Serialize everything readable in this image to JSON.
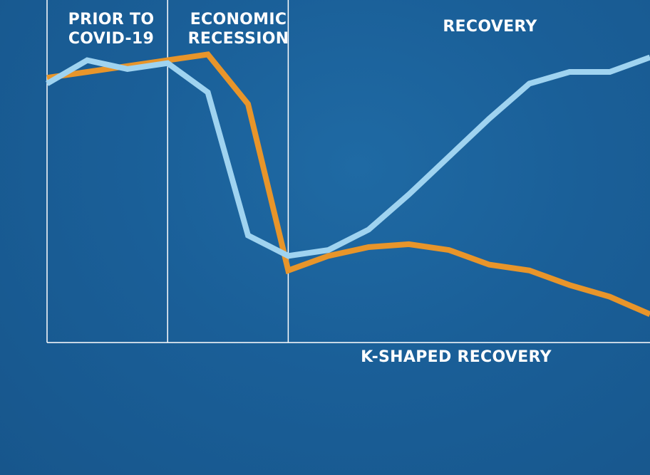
{
  "chart_data": {
    "type": "line",
    "title": "",
    "caption": "K-SHAPED RECOVERY",
    "xlabel": "",
    "ylabel": "",
    "grid": false,
    "legend": "none",
    "x": [
      0,
      1,
      2,
      3,
      4,
      5,
      6,
      7,
      8,
      9,
      10,
      11,
      12,
      13,
      14,
      15
    ],
    "ylim": [
      0,
      100
    ],
    "phases": [
      {
        "label": "PRIOR TO\nCOVID-19",
        "x_start": 0,
        "x_end": 3
      },
      {
        "label": "ECONOMIC\nRECESSION",
        "x_start": 3,
        "x_end": 6
      },
      {
        "label": "RECOVERY",
        "x_start": 6,
        "x_end": 15
      }
    ],
    "series": [
      {
        "color": "#e8952a",
        "values": [
          88,
          90,
          92,
          94,
          96,
          79,
          22,
          27,
          30,
          31,
          29,
          24,
          22,
          17,
          13,
          7
        ]
      },
      {
        "color": "#9fd3f0",
        "values": [
          86,
          94,
          91,
          93,
          83,
          34,
          27,
          29,
          36,
          48,
          61,
          74,
          86,
          90,
          90,
          95
        ]
      }
    ]
  }
}
